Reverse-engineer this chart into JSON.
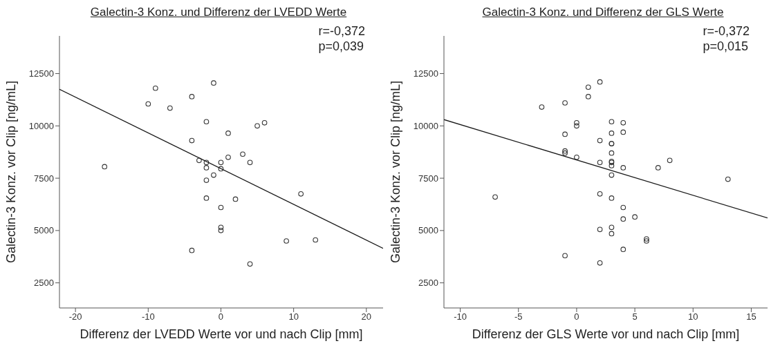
{
  "chart_data": [
    {
      "type": "scatter",
      "title": "Galectin-3 Konz. und Differenz der LVEDD Werte",
      "xlabel": "Differenz der LVEDD Werte vor und nach Clip [mm]",
      "ylabel": "Galectin-3 Konz. vor Clip [ng/mL]",
      "annotations": [
        "r=-0,372",
        "p=0,039"
      ],
      "xlim": [
        -22.2,
        22.3
      ],
      "xticks": [
        -20,
        -10,
        0,
        10,
        20
      ],
      "ylim": [
        1300,
        14300
      ],
      "yticks": [
        2500,
        5000,
        7500,
        10000,
        12500
      ],
      "series": [
        {
          "marker": "circle",
          "color": "#333333",
          "x": [
            -16,
            -9,
            -10,
            -7,
            -4,
            -4,
            -4,
            -3,
            -2,
            -2,
            -2,
            -2,
            -2,
            -1,
            -1,
            0,
            0,
            0,
            0,
            0,
            1,
            1,
            2,
            3,
            4,
            4,
            5,
            6,
            11,
            9,
            13
          ],
          "values": [
            8050,
            11800,
            11050,
            10850,
            11400,
            9300,
            4050,
            8350,
            10200,
            8250,
            8000,
            7400,
            6550,
            12050,
            7650,
            8250,
            7950,
            6100,
            5150,
            5000,
            9650,
            8500,
            6500,
            8650,
            8250,
            3400,
            10000,
            10150,
            6750,
            4500,
            4550
          ]
        },
        {
          "type": "line",
          "marker": "none",
          "color": "#1a1a1a",
          "x": [
            -22.2,
            22.3
          ],
          "values": [
            11750,
            4150
          ]
        }
      ]
    },
    {
      "type": "scatter",
      "title": "Galectin-3 Konz. und Differenz der GLS Werte",
      "xlabel": "Differenz der GLS Werte vor und nach Clip [mm]",
      "ylabel": "Galectin-3 Konz. vor Clip [ng/mL]",
      "annotations": [
        "r=-0,372",
        "p=0,015"
      ],
      "xlim": [
        -11.4,
        16.4
      ],
      "xticks": [
        -10,
        -5,
        0,
        5,
        10,
        15
      ],
      "ylim": [
        1300,
        14300
      ],
      "yticks": [
        2500,
        5000,
        7500,
        10000,
        12500
      ],
      "series": [
        {
          "marker": "circle",
          "color": "#333333",
          "x": [
            -7,
            -3,
            -1,
            -1,
            -1,
            -1,
            -1,
            0,
            0,
            0,
            1,
            1,
            2,
            2,
            2,
            2,
            2,
            2,
            3,
            3,
            3,
            3,
            3,
            3,
            3,
            3,
            3,
            3,
            3,
            3,
            4,
            4,
            4,
            4,
            4,
            4,
            5,
            6,
            6,
            7,
            8,
            13
          ],
          "values": [
            6600,
            10900,
            11100,
            9600,
            8800,
            8700,
            3800,
            10150,
            10000,
            8500,
            11850,
            11400,
            12100,
            9300,
            8250,
            6750,
            5050,
            3450,
            10200,
            9650,
            9150,
            9150,
            8700,
            8300,
            8250,
            8100,
            7650,
            6550,
            5150,
            4850,
            10150,
            9700,
            8000,
            6100,
            5550,
            4100,
            5650,
            4600,
            4500,
            8000,
            8350,
            7450
          ]
        },
        {
          "type": "line",
          "marker": "none",
          "color": "#1a1a1a",
          "x": [
            -11.4,
            16.4
          ],
          "values": [
            10300,
            5600
          ]
        }
      ]
    }
  ]
}
